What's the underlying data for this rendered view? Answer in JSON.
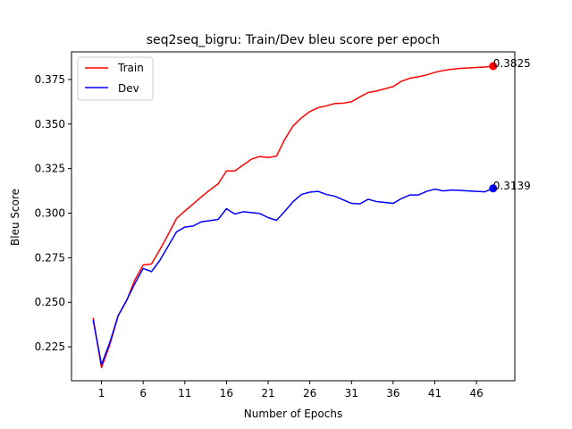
{
  "chart_data": {
    "type": "line",
    "title": "seq2seq_bigru: Train/Dev bleu score per epoch",
    "xlabel": "Number of Epochs",
    "ylabel": "Bleu Score",
    "xlim": [
      -2.6,
      50.6
    ],
    "ylim": [
      0.206,
      0.3905
    ],
    "xticks": [
      1,
      6,
      11,
      16,
      21,
      26,
      31,
      36,
      41,
      46
    ],
    "yticks": [
      0.225,
      0.25,
      0.275,
      0.3,
      0.325,
      0.35,
      0.375
    ],
    "ytick_labels": [
      "0.225",
      "0.250",
      "0.275",
      "0.300",
      "0.325",
      "0.350",
      "0.375"
    ],
    "legend_position": "upper-left",
    "grid": false,
    "x": [
      0,
      1,
      2,
      3,
      4,
      5,
      6,
      7,
      8,
      9,
      10,
      11,
      12,
      13,
      14,
      15,
      16,
      17,
      18,
      19,
      20,
      21,
      22,
      23,
      24,
      25,
      26,
      27,
      28,
      29,
      30,
      31,
      32,
      33,
      34,
      35,
      36,
      37,
      38,
      39,
      40,
      41,
      42,
      43,
      44,
      45,
      46,
      47,
      48
    ],
    "series": [
      {
        "name": "Train",
        "color": "#ff0000",
        "values": [
          0.2412,
          0.2134,
          0.2262,
          0.2425,
          0.2508,
          0.2625,
          0.271,
          0.2715,
          0.2795,
          0.288,
          0.297,
          0.3012,
          0.3052,
          0.3092,
          0.313,
          0.3165,
          0.3237,
          0.3237,
          0.327,
          0.3303,
          0.3318,
          0.3312,
          0.332,
          0.3415,
          0.349,
          0.3535,
          0.357,
          0.3592,
          0.3602,
          0.3615,
          0.3617,
          0.3625,
          0.3652,
          0.3677,
          0.3685,
          0.3698,
          0.371,
          0.374,
          0.3757,
          0.3765,
          0.3775,
          0.379,
          0.38,
          0.3807,
          0.3812,
          0.3815,
          0.3817,
          0.382,
          0.3825
        ],
        "end_label": "0.3825"
      },
      {
        "name": "Dev",
        "color": "#0000ff",
        "values": [
          0.24,
          0.215,
          0.2275,
          0.2425,
          0.251,
          0.2605,
          0.269,
          0.2672,
          0.2735,
          0.2815,
          0.2895,
          0.2922,
          0.2928,
          0.2952,
          0.2958,
          0.2965,
          0.3025,
          0.2995,
          0.3008,
          0.3003,
          0.2998,
          0.2975,
          0.296,
          0.301,
          0.3065,
          0.3105,
          0.3118,
          0.3122,
          0.3105,
          0.3095,
          0.3075,
          0.3055,
          0.3052,
          0.3078,
          0.3065,
          0.306,
          0.3055,
          0.3082,
          0.3102,
          0.3102,
          0.3122,
          0.3135,
          0.3125,
          0.313,
          0.3128,
          0.3125,
          0.3122,
          0.312,
          0.3139
        ],
        "end_label": "0.3139"
      }
    ]
  }
}
